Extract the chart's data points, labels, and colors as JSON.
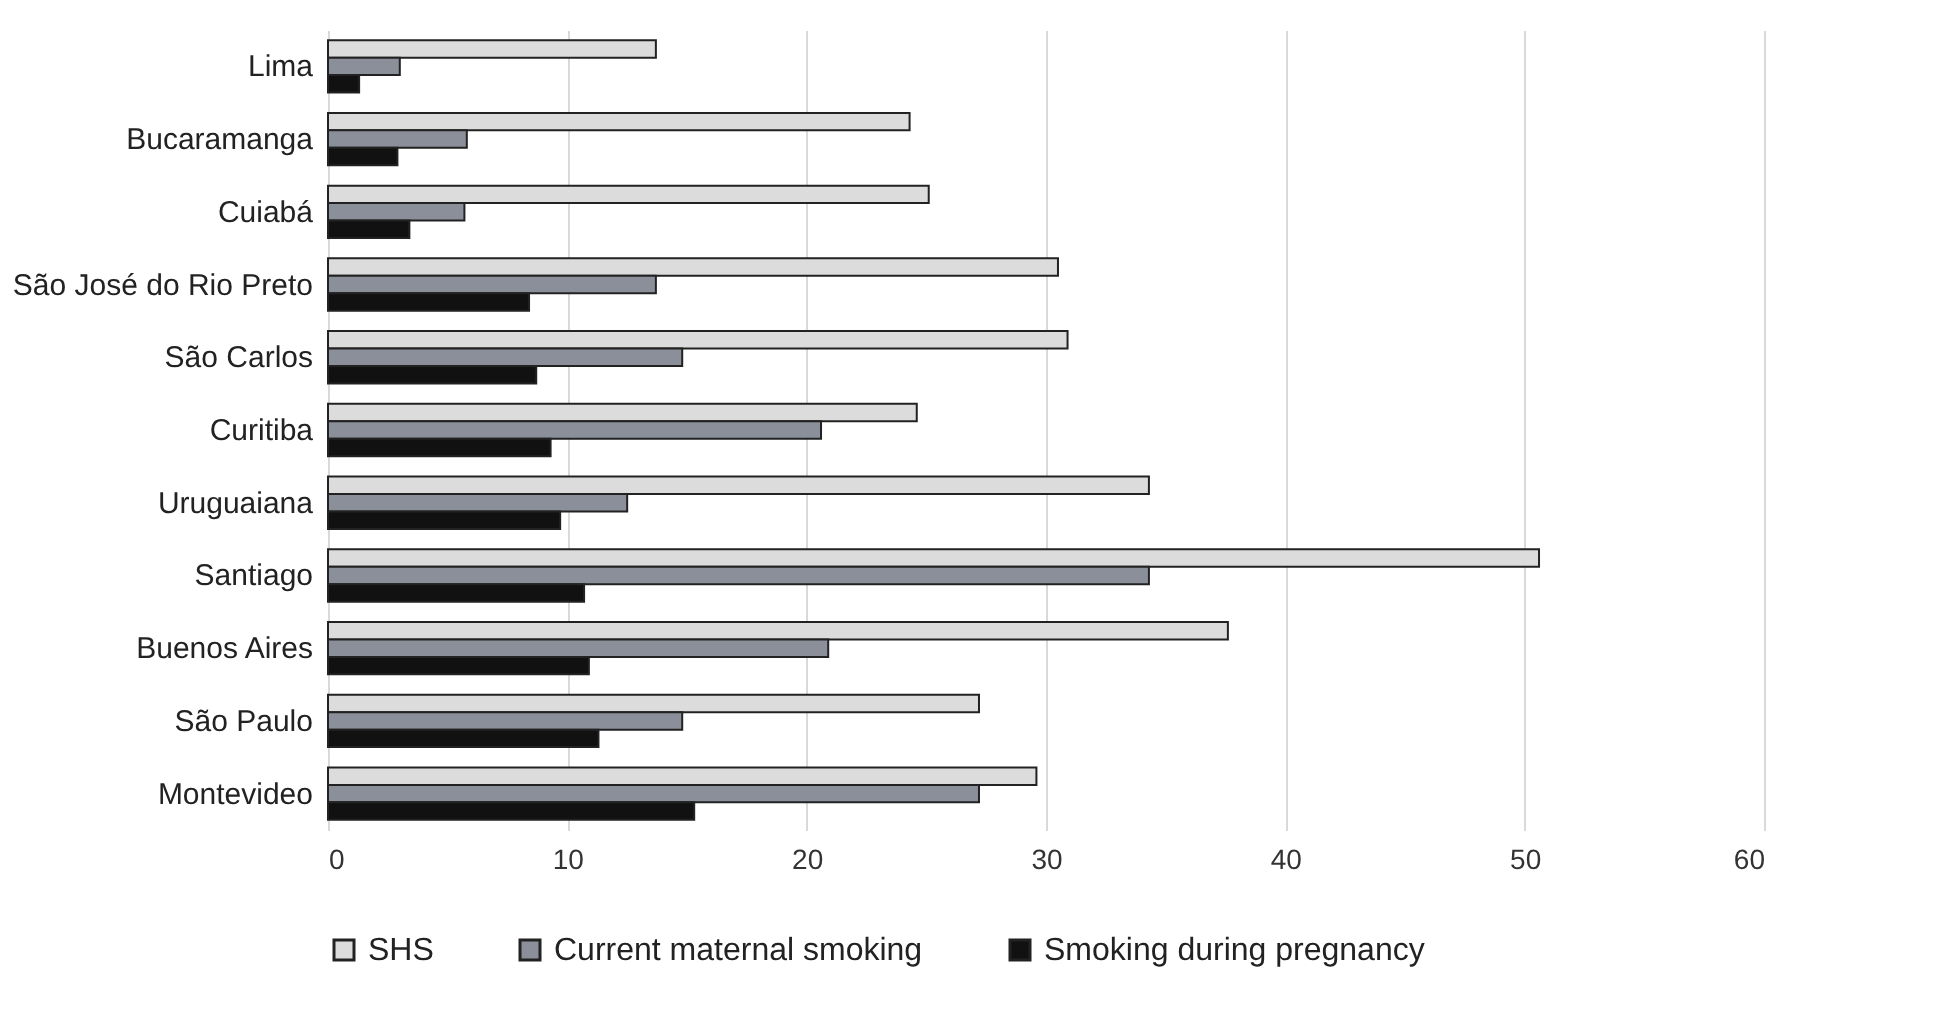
{
  "chart_data": {
    "type": "bar",
    "orientation": "horizontal",
    "categories": [
      "Lima",
      "Bucaramanga",
      "Cuiabá",
      "São José do Rio Preto",
      "São Carlos",
      "Curitiba",
      "Uruguaiana",
      "Santiago",
      "Buenos Aires",
      "São Paulo",
      "Montevideo"
    ],
    "series": [
      {
        "name": "SHS",
        "color": "#dcdcdc",
        "values": [
          13.7,
          24.3,
          25.1,
          30.5,
          30.9,
          24.6,
          34.3,
          50.6,
          37.6,
          27.2,
          29.6
        ]
      },
      {
        "name": "Current maternal smoking",
        "color": "#8a8f99",
        "values": [
          3.0,
          5.8,
          5.7,
          13.7,
          14.8,
          20.6,
          12.5,
          34.3,
          20.9,
          14.8,
          27.2
        ]
      },
      {
        "name": "Smoking during pregnancy",
        "color": "#111111",
        "values": [
          1.3,
          2.9,
          3.4,
          8.4,
          8.7,
          9.3,
          9.7,
          10.7,
          10.9,
          11.3,
          15.3
        ]
      }
    ],
    "xlim": [
      0,
      60
    ],
    "xticks": [
      0,
      10,
      20,
      30,
      40,
      50,
      60
    ],
    "grid": "x",
    "legend": "bottom"
  }
}
